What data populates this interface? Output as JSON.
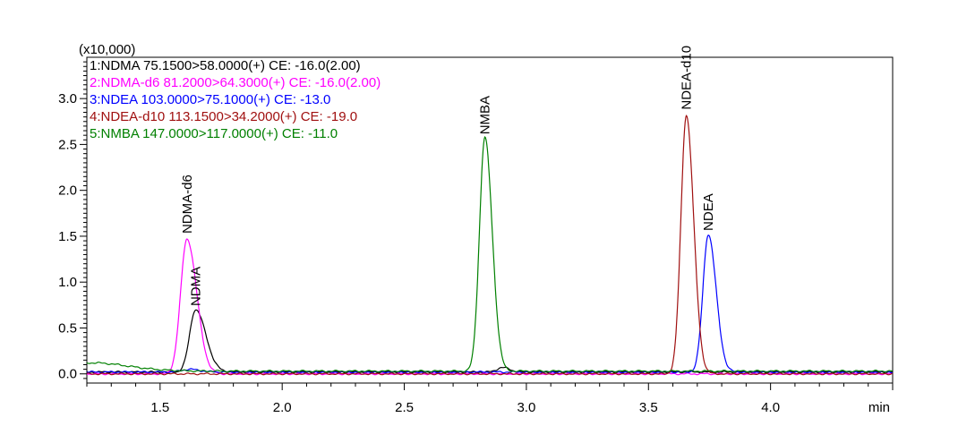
{
  "chart_data": {
    "type": "line",
    "scale_note": "(x10,000)",
    "xlabel": "min",
    "xlim": [
      1.2,
      4.5
    ],
    "ylim": [
      -0.1,
      3.45
    ],
    "x_ticks": [
      1.5,
      2.0,
      2.5,
      3.0,
      3.5,
      4.0
    ],
    "x_tick_labels": [
      "1.5",
      "2.0",
      "2.5",
      "3.0",
      "3.5",
      "4.0"
    ],
    "y_ticks": [
      0.0,
      0.5,
      1.0,
      1.5,
      2.0,
      2.5,
      3.0
    ],
    "y_tick_labels": [
      "0.0",
      "0.5",
      "1.0",
      "1.5",
      "2.0",
      "2.5",
      "3.0"
    ],
    "legend_placement": "top-left",
    "series": [
      {
        "name": "1:NDMA 75.1500>58.0000(+) CE: -16.0(2.00)",
        "color": "#000000",
        "baseline": 0.02,
        "peaks": [
          {
            "rt": 1.645,
            "height": 0.68,
            "sigma_left": 0.024,
            "sigma_right": 0.042
          },
          {
            "rt": 2.9,
            "height": 0.05,
            "sigma_left": 0.02,
            "sigma_right": 0.03
          }
        ]
      },
      {
        "name": "2:NDMA-d6 81.2000>64.3000(+) CE: -16.0(2.00)",
        "color": "#ff00ff",
        "baseline": 0.0,
        "peaks": [
          {
            "rt": 1.61,
            "height": 1.47,
            "sigma_left": 0.026,
            "sigma_right": 0.04
          }
        ]
      },
      {
        "name": "3:NDEA 103.0000>75.1000(+) CE: -13.0",
        "color": "#0000ff",
        "baseline": 0.02,
        "peaks": [
          {
            "rt": 1.62,
            "height": 0.03,
            "sigma_left": 0.03,
            "sigma_right": 0.04
          },
          {
            "rt": 3.745,
            "height": 1.5,
            "sigma_left": 0.022,
            "sigma_right": 0.032
          }
        ]
      },
      {
        "name": "4:NDEA-d10 113.1500>34.2000(+) CE: -19.0",
        "color": "#a01010",
        "baseline": 0.0,
        "peaks": [
          {
            "rt": 3.655,
            "height": 2.82,
            "sigma_left": 0.022,
            "sigma_right": 0.03
          }
        ]
      },
      {
        "name": "5:NMBA 147.0000>117.0000(+) CE: -11.0",
        "color": "#008000",
        "baseline": 0.03,
        "peaks": [
          {
            "rt": 1.22,
            "height": 0.09,
            "sigma_left": 0.1,
            "sigma_right": 0.15
          },
          {
            "rt": 2.83,
            "height": 2.55,
            "sigma_left": 0.022,
            "sigma_right": 0.03
          }
        ]
      }
    ],
    "annotations": [
      {
        "text": "NDMA-d6",
        "x": 1.61,
        "y": 1.47
      },
      {
        "text": "NDMA",
        "x": 1.645,
        "y": 0.68
      },
      {
        "text": "NMBA",
        "x": 2.83,
        "y": 2.55
      },
      {
        "text": "NDEA-d10",
        "x": 3.655,
        "y": 2.82
      },
      {
        "text": "NDEA",
        "x": 3.745,
        "y": 1.5
      }
    ]
  }
}
